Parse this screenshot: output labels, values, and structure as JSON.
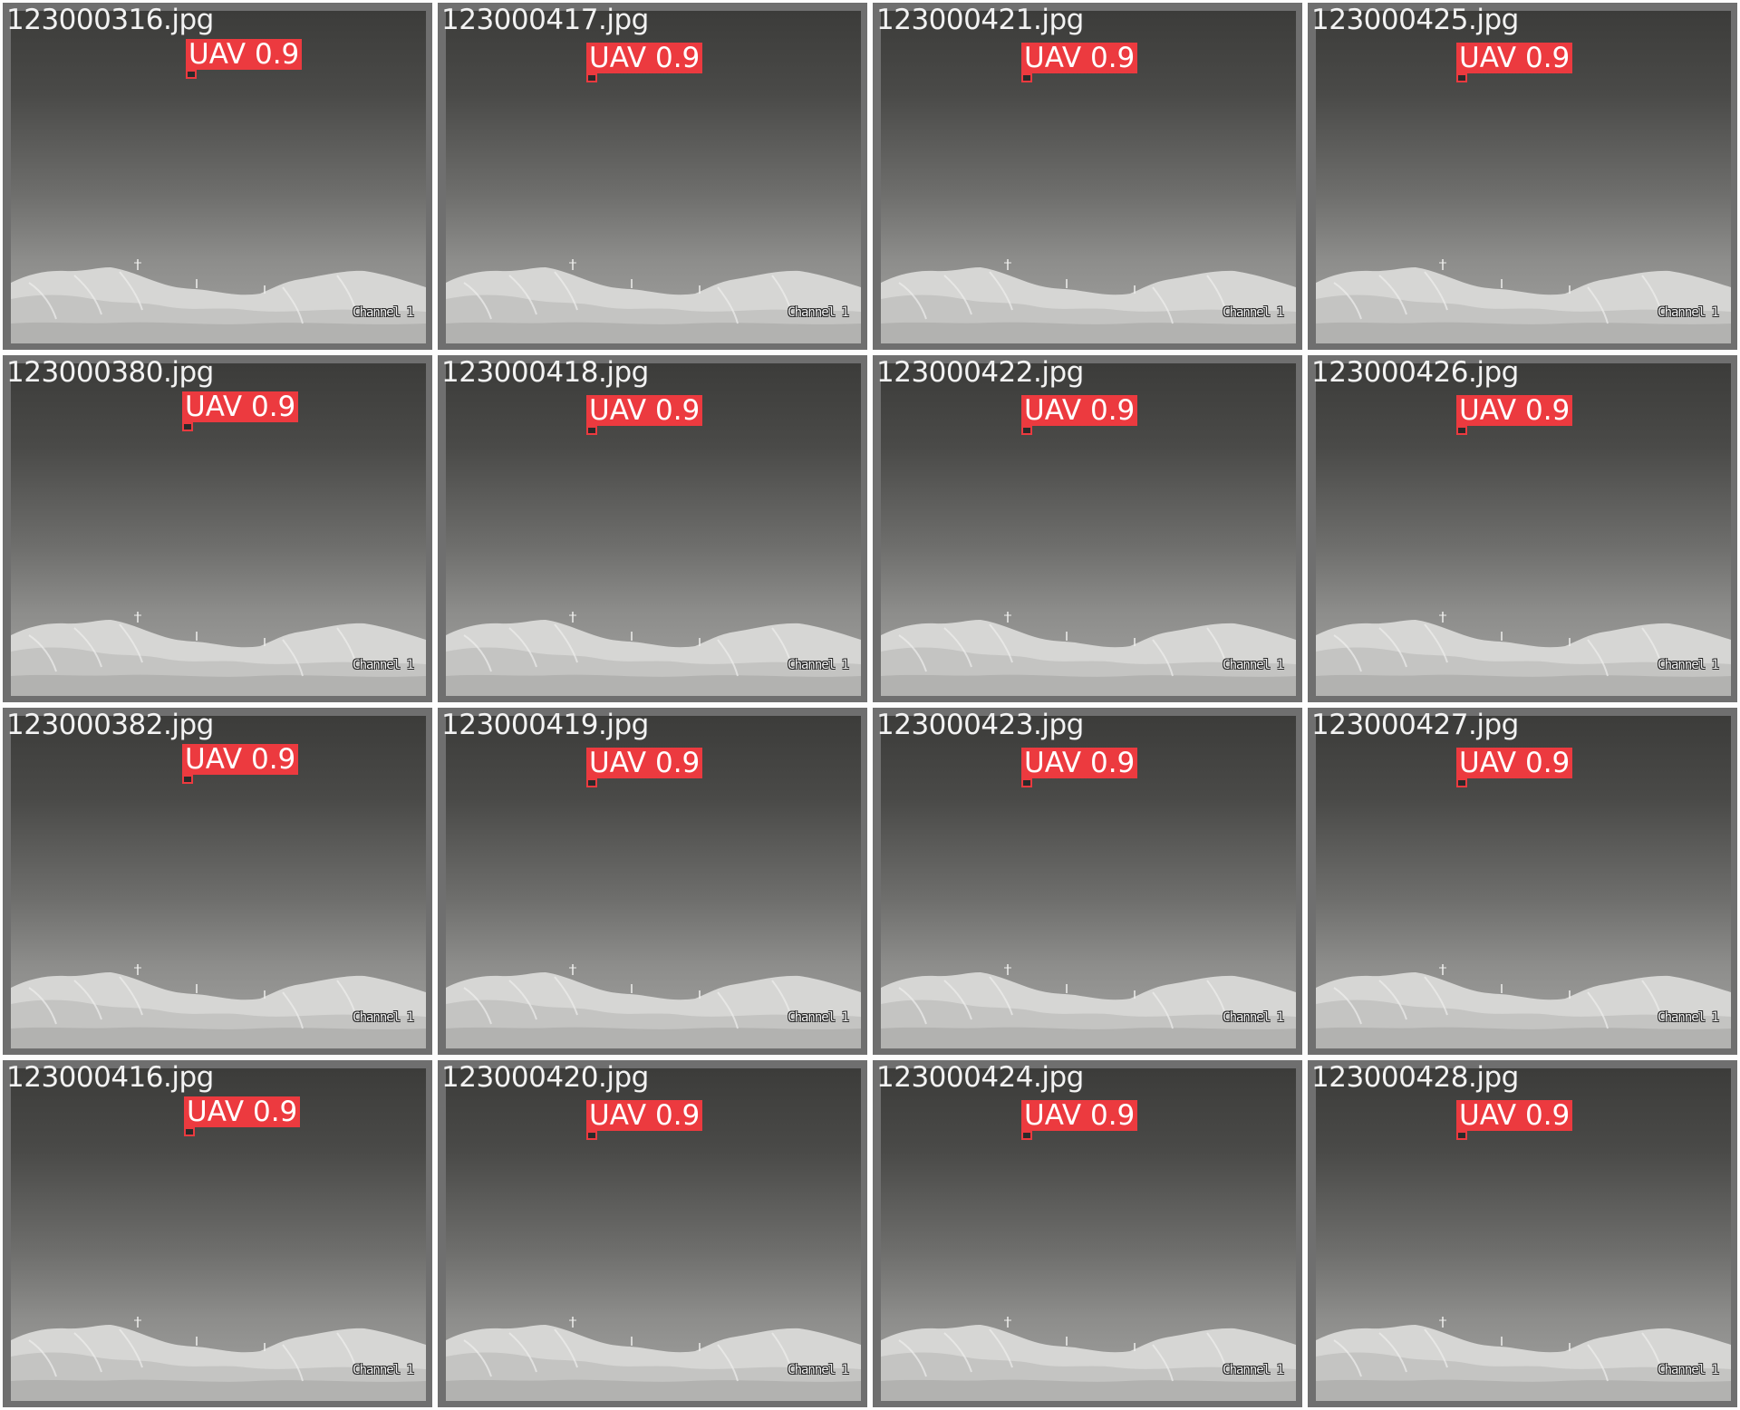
{
  "colors": {
    "detection": "#ec3a3f",
    "label_text": "#ffffff",
    "filename_text": "#f2f2f2"
  },
  "tiles": [
    {
      "filename": "123000316.jpg",
      "label": "UAV 0.9",
      "channel": "Channel 1"
    },
    {
      "filename": "123000417.jpg",
      "label": "UAV 0.9",
      "channel": "Channel 1"
    },
    {
      "filename": "123000421.jpg",
      "label": "UAV 0.9",
      "channel": "Channel 1"
    },
    {
      "filename": "123000425.jpg",
      "label": "UAV 0.9",
      "channel": "Channel 1"
    },
    {
      "filename": "123000380.jpg",
      "label": "UAV 0.9",
      "channel": "Channel 1"
    },
    {
      "filename": "123000418.jpg",
      "label": "UAV 0.9",
      "channel": "Channel 1"
    },
    {
      "filename": "123000422.jpg",
      "label": "UAV 0.9",
      "channel": "Channel 1"
    },
    {
      "filename": "123000426.jpg",
      "label": "UAV 0.9",
      "channel": "Channel 1"
    },
    {
      "filename": "123000382.jpg",
      "label": "UAV 0.9",
      "channel": "Channel 1"
    },
    {
      "filename": "123000419.jpg",
      "label": "UAV 0.9",
      "channel": "Channel 1"
    },
    {
      "filename": "123000423.jpg",
      "label": "UAV 0.9",
      "channel": "Channel 1"
    },
    {
      "filename": "123000427.jpg",
      "label": "UAV 0.9",
      "channel": "Channel 1"
    },
    {
      "filename": "123000416.jpg",
      "label": "UAV 0.9",
      "channel": "Channel 1"
    },
    {
      "filename": "123000420.jpg",
      "label": "UAV 0.9",
      "channel": "Channel 1"
    },
    {
      "filename": "123000424.jpg",
      "label": "UAV 0.9",
      "channel": "Channel 1"
    },
    {
      "filename": "123000428.jpg",
      "label": "UAV 0.9",
      "channel": "Channel 1"
    }
  ]
}
